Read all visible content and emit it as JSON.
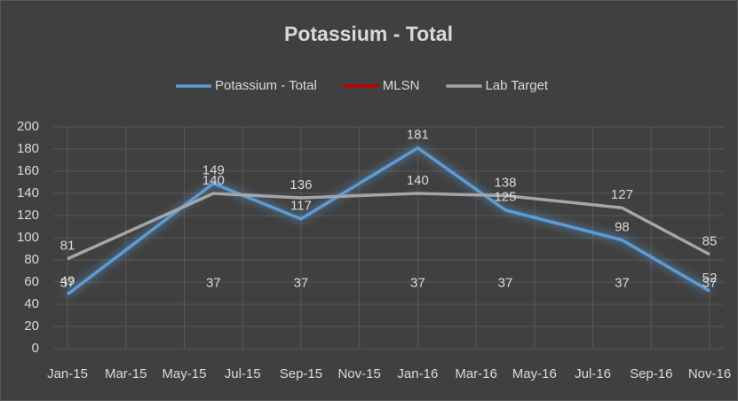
{
  "chart_data": {
    "type": "line",
    "title": "Potassium - Total",
    "x": [
      "2015-01",
      "2015-06",
      "2015-09",
      "2016-01",
      "2016-04",
      "2016-08",
      "2016-11"
    ],
    "series": [
      {
        "name": "Potassium - Total",
        "color": "#5b9bd5",
        "values": [
          49,
          149,
          117,
          181,
          125,
          98,
          52
        ]
      },
      {
        "name": "MLSN",
        "color": "#c00000",
        "values": [
          37,
          37,
          37,
          37,
          37,
          37,
          37
        ]
      },
      {
        "name": "Lab Target",
        "color": "#a5a5a5",
        "values": [
          81,
          140,
          136,
          140,
          138,
          127,
          85
        ]
      }
    ],
    "xlim": [
      "2015-01",
      "2016-11"
    ],
    "xticks": [
      {
        "value": "2015-01",
        "label": "Jan-15"
      },
      {
        "value": "2015-03",
        "label": "Mar-15"
      },
      {
        "value": "2015-05",
        "label": "May-15"
      },
      {
        "value": "2015-07",
        "label": "Jul-15"
      },
      {
        "value": "2015-09",
        "label": "Sep-15"
      },
      {
        "value": "2015-11",
        "label": "Nov-15"
      },
      {
        "value": "2016-01",
        "label": "Jan-16"
      },
      {
        "value": "2016-03",
        "label": "Mar-16"
      },
      {
        "value": "2016-05",
        "label": "May-16"
      },
      {
        "value": "2016-07",
        "label": "Jul-16"
      },
      {
        "value": "2016-09",
        "label": "Sep-16"
      },
      {
        "value": "2016-11",
        "label": "Nov-16"
      }
    ],
    "ylim": [
      0,
      200
    ],
    "yticks": [
      0,
      20,
      40,
      60,
      80,
      100,
      120,
      140,
      160,
      180,
      200
    ],
    "grid": true,
    "data_labels": true,
    "legend": "top"
  }
}
